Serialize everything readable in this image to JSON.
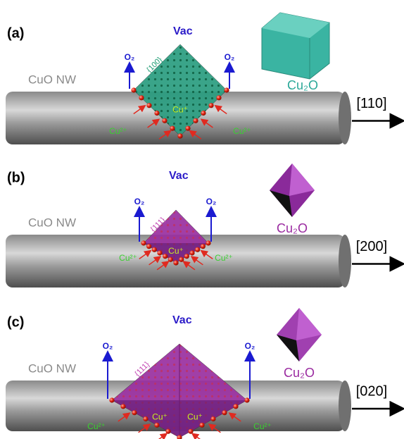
{
  "panels": [
    {
      "label": "(a)",
      "vac": "Vac",
      "o2_left": "O₂",
      "o2_right": "O₂",
      "facet": "{100}",
      "cu_plus": [
        "Cu⁺"
      ],
      "cu2_left": "Cu²⁺",
      "cu2_right": "Cu²⁺",
      "wire": "CuO NW",
      "product": "Cu₂O",
      "direction": "[110]"
    },
    {
      "label": "(b)",
      "vac": "Vac",
      "o2_left": "O₂",
      "o2_right": "O₂",
      "facet": "{111}",
      "cu_plus": [
        "Cu⁺"
      ],
      "cu2_left": "Cu²⁺",
      "cu2_right": "Cu²⁺",
      "wire": "CuO NW",
      "product": "Cu₂O",
      "direction": "[200]"
    },
    {
      "label": "(c)",
      "vac": "Vac",
      "o2_left": "O₂",
      "o2_right": "O₂",
      "facet": "{111}",
      "cu_plus": [
        "Cu⁺",
        "Cu⁺"
      ],
      "cu2_left": "Cu²⁺",
      "cu2_right": "Cu²⁺",
      "wire": "CuO NW",
      "product": "Cu₂O",
      "direction": "[020]"
    }
  ]
}
